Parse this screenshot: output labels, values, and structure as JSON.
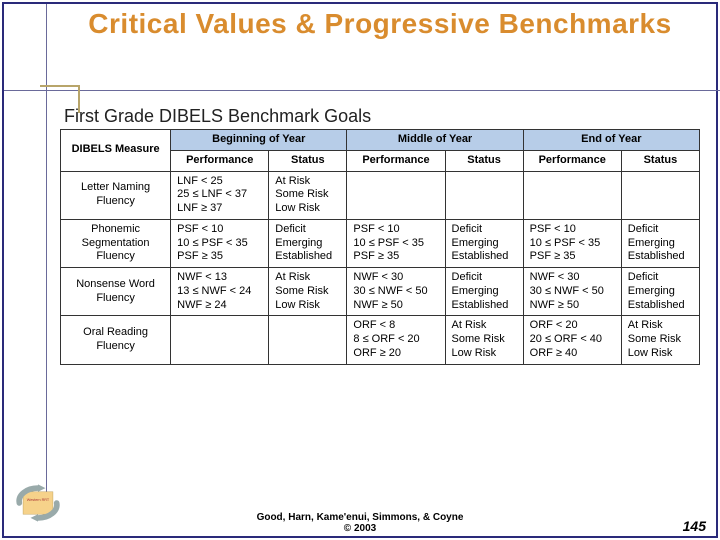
{
  "slide": {
    "title": "Critical Values & Progressive Benchmarks",
    "table_title": "First Grade DIBELS Benchmark Goals",
    "footer_line1": "Good, Harn, Kame'enui, Simmons, & Coyne",
    "footer_line2": "© 2003",
    "page_number": "145"
  },
  "colors": {
    "frame": "#2a2a7a",
    "title": "#d98c2e",
    "period_header_bg": "#b7cde8",
    "rule": "#6a6a9a",
    "accent_box": "#b8a56a"
  },
  "table": {
    "measure_header": "DIBELS Measure",
    "periods": [
      "Beginning of Year",
      "Middle of Year",
      "End of Year"
    ],
    "subheaders": [
      "Performance",
      "Status"
    ],
    "rows": [
      {
        "measure": "Letter Naming Fluency",
        "cells": [
          {
            "perf": [
              "LNF < 25",
              "25 ≤ LNF < 37",
              "LNF ≥ 37"
            ],
            "status": [
              "At Risk",
              "Some Risk",
              "Low Risk"
            ]
          },
          {
            "perf": null,
            "status": null
          },
          {
            "perf": null,
            "status": null
          }
        ]
      },
      {
        "measure": "Phonemic Segmentation Fluency",
        "cells": [
          {
            "perf": [
              "PSF < 10",
              "10 ≤ PSF < 35",
              "PSF ≥ 35"
            ],
            "status": [
              "Deficit",
              "Emerging",
              "Established"
            ]
          },
          {
            "perf": [
              "PSF < 10",
              "10 ≤ PSF < 35",
              "PSF ≥ 35"
            ],
            "status": [
              "Deficit",
              "Emerging",
              "Established"
            ]
          },
          {
            "perf": [
              "PSF < 10",
              "10 ≤ PSF < 35",
              "PSF ≥ 35"
            ],
            "status": [
              "Deficit",
              "Emerging",
              "Established"
            ]
          }
        ]
      },
      {
        "measure": "Nonsense Word Fluency",
        "cells": [
          {
            "perf": [
              "NWF < 13",
              "13 ≤ NWF < 24",
              "NWF ≥ 24"
            ],
            "status": [
              "At Risk",
              "Some Risk",
              "Low Risk"
            ]
          },
          {
            "perf": [
              "NWF < 30",
              "30 ≤ NWF < 50",
              "NWF ≥ 50"
            ],
            "status": [
              "Deficit",
              "Emerging",
              "Established"
            ]
          },
          {
            "perf": [
              "NWF < 30",
              "30 ≤ NWF < 50",
              "NWF ≥ 50"
            ],
            "status": [
              "Deficit",
              "Emerging",
              "Established"
            ]
          }
        ]
      },
      {
        "measure": "Oral Reading Fluency",
        "cells": [
          {
            "perf": null,
            "status": null
          },
          {
            "perf": [
              "ORF < 8",
              "8 ≤ ORF < 20",
              "ORF ≥ 20"
            ],
            "status": [
              "At Risk",
              "Some Risk",
              "Low Risk"
            ]
          },
          {
            "perf": [
              "ORF < 20",
              "20 ≤ ORF < 40",
              "ORF ≥ 40"
            ],
            "status": [
              "At Risk",
              "Some Risk",
              "Low Risk"
            ]
          }
        ]
      }
    ]
  }
}
